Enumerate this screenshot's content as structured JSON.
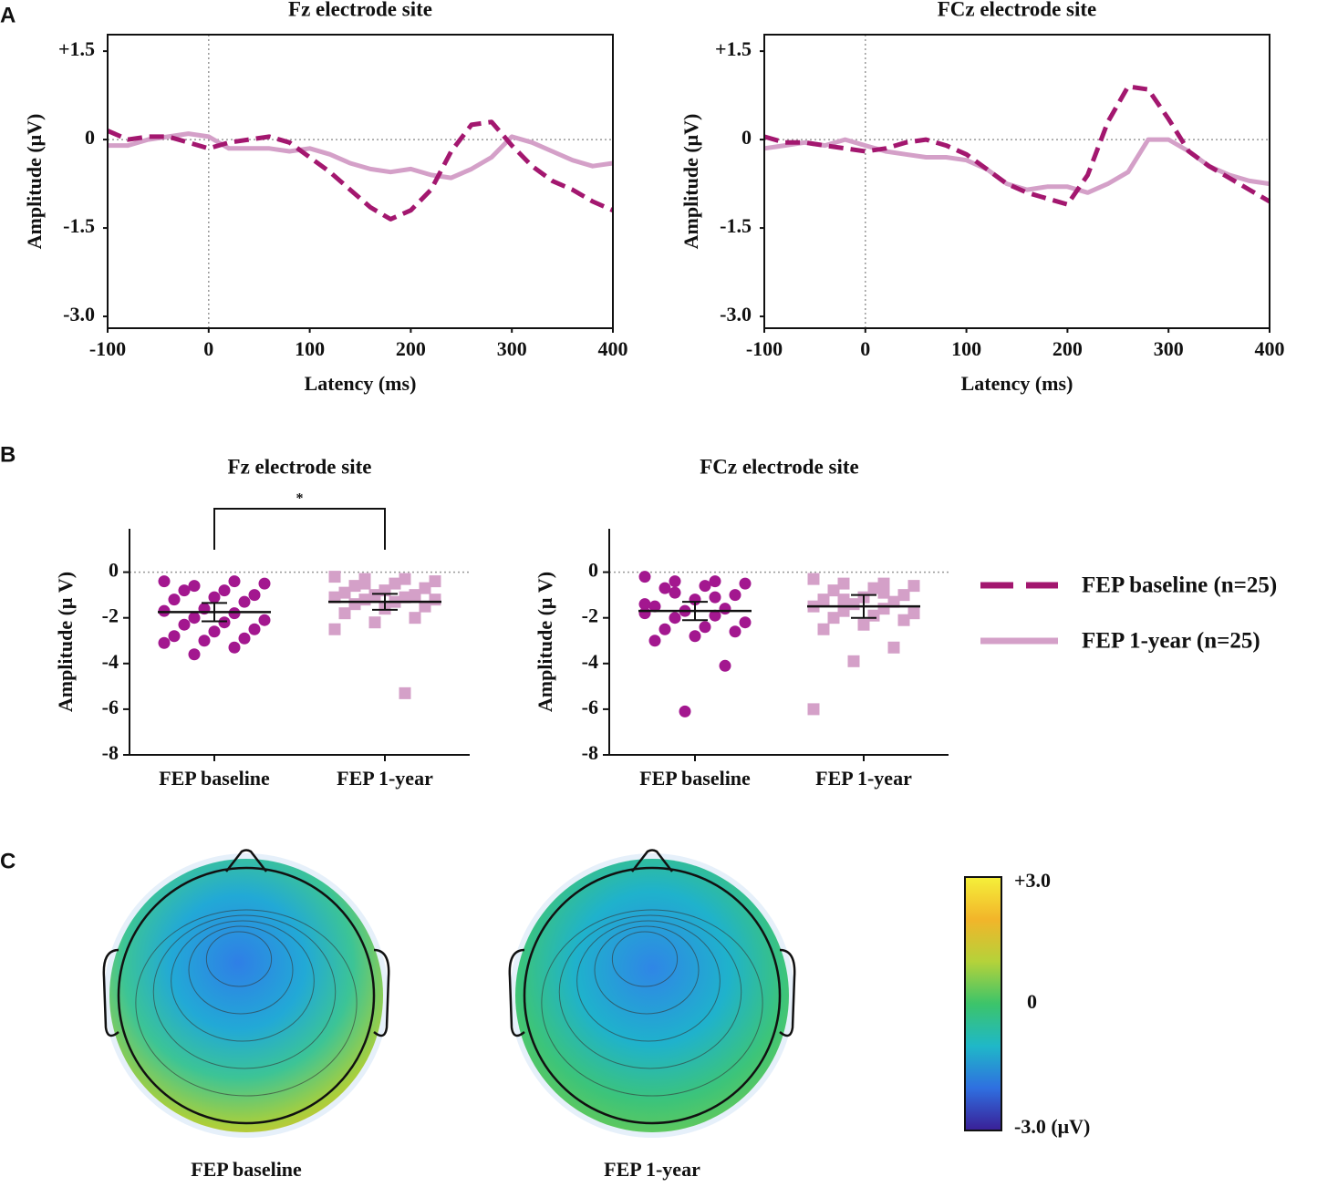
{
  "panels": [
    "A",
    "B",
    "C"
  ],
  "chart_data": [
    {
      "type": "line",
      "title": "Fz electrode site",
      "xlabel": "Latency (ms)",
      "ylabel": "Amplitude (μV)",
      "x": [
        -100,
        -80,
        -60,
        -40,
        -20,
        0,
        20,
        40,
        60,
        80,
        100,
        120,
        140,
        160,
        180,
        200,
        220,
        240,
        260,
        280,
        300,
        320,
        340,
        360,
        380,
        400
      ],
      "series": [
        {
          "name": "FEP baseline (n=25)",
          "color": "#a3176f",
          "dashed": true,
          "values": [
            0.15,
            0.0,
            0.05,
            0.05,
            -0.05,
            -0.15,
            -0.05,
            0.0,
            0.05,
            -0.05,
            -0.3,
            -0.55,
            -0.85,
            -1.15,
            -1.35,
            -1.2,
            -0.85,
            -0.2,
            0.25,
            0.3,
            -0.1,
            -0.45,
            -0.7,
            -0.85,
            -1.05,
            -1.2
          ]
        },
        {
          "name": "FEP 1-year (n=25)",
          "color": "#d4a0c8",
          "dashed": false,
          "values": [
            -0.1,
            -0.1,
            0.0,
            0.05,
            0.1,
            0.05,
            -0.15,
            -0.15,
            -0.15,
            -0.2,
            -0.15,
            -0.25,
            -0.4,
            -0.5,
            -0.55,
            -0.5,
            -0.6,
            -0.65,
            -0.5,
            -0.3,
            0.05,
            -0.05,
            -0.2,
            -0.35,
            -0.45,
            -0.4
          ]
        }
      ],
      "xlim": [
        -100,
        400
      ],
      "xticks": [
        -100,
        0,
        100,
        200,
        300,
        400
      ],
      "ylim": [
        -3.2,
        1.78
      ],
      "yticks": [
        {
          "value": 1.5,
          "label": "+1.5"
        },
        0,
        -1.5,
        {
          "value": -3,
          "label": "-3.0"
        }
      ]
    },
    {
      "type": "line",
      "title": "FCz electrode site",
      "xlabel": "Latency (ms)",
      "ylabel": "Amplitude (μV)",
      "x": [
        -100,
        -80,
        -60,
        -40,
        -20,
        0,
        20,
        40,
        60,
        80,
        100,
        120,
        140,
        160,
        180,
        200,
        220,
        240,
        260,
        280,
        300,
        320,
        340,
        360,
        380,
        400
      ],
      "series": [
        {
          "color": "#a3176f",
          "dashed": true,
          "values": [
            0.05,
            -0.05,
            -0.05,
            -0.1,
            -0.15,
            -0.2,
            -0.15,
            -0.05,
            0.0,
            -0.1,
            -0.25,
            -0.5,
            -0.75,
            -0.9,
            -1.0,
            -1.1,
            -0.6,
            0.3,
            0.9,
            0.85,
            0.35,
            -0.2,
            -0.45,
            -0.65,
            -0.85,
            -1.05
          ]
        },
        {
          "color": "#d4a0c8",
          "dashed": false,
          "values": [
            -0.15,
            -0.1,
            -0.05,
            -0.1,
            0.0,
            -0.1,
            -0.2,
            -0.25,
            -0.3,
            -0.3,
            -0.35,
            -0.5,
            -0.75,
            -0.85,
            -0.8,
            -0.8,
            -0.9,
            -0.75,
            -0.55,
            0.0,
            0.0,
            -0.2,
            -0.45,
            -0.6,
            -0.7,
            -0.75
          ]
        }
      ],
      "xlim": [
        -100,
        400
      ],
      "xticks": [
        -100,
        0,
        100,
        200,
        300,
        400
      ],
      "ylim": [
        -3.2,
        1.78
      ],
      "yticks": [
        {
          "value": 1.5,
          "label": "+1.5"
        },
        0,
        -1.5,
        {
          "value": -3,
          "label": "-3.0"
        }
      ]
    },
    {
      "type": "strip",
      "title": "Fz electrode site",
      "ylabel": "Amplitude (μ V)",
      "categories": [
        "FEP baseline",
        "FEP 1-year"
      ],
      "groups": [
        {
          "color": "#a3178f",
          "marker": "circle",
          "mean": -1.75,
          "error": 0.4,
          "values": [
            -0.4,
            -0.4,
            -0.6,
            -0.5,
            -0.8,
            -0.8,
            -1.0,
            -1.1,
            -1.2,
            -1.3,
            -1.6,
            -1.7,
            -1.8,
            -2.0,
            -2.1,
            -2.2,
            -2.3,
            -2.5,
            -2.6,
            -2.8,
            -2.9,
            -3.0,
            -3.1,
            -3.3,
            -3.6
          ]
        },
        {
          "color": "#d4a0c8",
          "marker": "square",
          "mean": -1.3,
          "error": 0.35,
          "values": [
            -0.2,
            -0.3,
            -0.3,
            -0.4,
            -0.5,
            -0.6,
            -0.7,
            -0.8,
            -0.9,
            -1.0,
            -1.0,
            -1.1,
            -1.1,
            -1.2,
            -1.2,
            -1.3,
            -1.4,
            -1.5,
            -1.6,
            -1.8,
            -2.0,
            -2.2,
            -2.5,
            -5.3,
            -0.5
          ]
        }
      ],
      "significance": "*",
      "ylim": [
        -8,
        1.9
      ],
      "yticks": [
        0,
        -2,
        -4,
        -6,
        -8
      ]
    },
    {
      "type": "strip",
      "title": "FCz electrode site",
      "ylabel": "Amplitude (μ V)",
      "categories": [
        "FEP baseline",
        "FEP 1-year"
      ],
      "groups": [
        {
          "color": "#a3178f",
          "marker": "circle",
          "mean": -1.7,
          "error": 0.4,
          "values": [
            -0.2,
            -0.4,
            -0.4,
            -0.5,
            -0.6,
            -0.7,
            -1.0,
            -1.2,
            -1.5,
            -1.6,
            -1.7,
            -1.8,
            -1.9,
            -2.0,
            -2.2,
            -2.4,
            -2.5,
            -2.6,
            -2.8,
            -3.0,
            -4.1,
            -6.1,
            -1.4,
            -1.1,
            -0.9
          ]
        },
        {
          "color": "#d4a0c8",
          "marker": "square",
          "mean": -1.5,
          "error": 0.5,
          "values": [
            -0.3,
            -0.5,
            -0.5,
            -0.6,
            -0.7,
            -0.8,
            -1.0,
            -1.1,
            -1.2,
            -1.3,
            -1.4,
            -1.5,
            -1.6,
            -1.7,
            -1.8,
            -1.9,
            -2.0,
            -2.1,
            -2.3,
            -2.5,
            -3.3,
            -3.9,
            -6.0,
            -0.9,
            -1.2
          ]
        }
      ],
      "ylim": [
        -8,
        1.9
      ],
      "yticks": [
        0,
        -2,
        -4,
        -6,
        -8
      ]
    },
    {
      "type": "topomap",
      "maps": [
        {
          "label": "FEP baseline"
        },
        {
          "label": "FEP 1-year"
        }
      ],
      "colormap": [
        "#3a1f96",
        "#2f6fe0",
        "#1fb8c8",
        "#3cc46a",
        "#b5d23a",
        "#f2b52a",
        "#f5f03a"
      ],
      "colorbar": {
        "lim": [
          -3,
          3
        ],
        "ticks": [
          {
            "value": 3,
            "label": "+3.0"
          },
          0,
          {
            "value": -3,
            "label": "-3.0 (μV)"
          }
        ]
      }
    }
  ]
}
